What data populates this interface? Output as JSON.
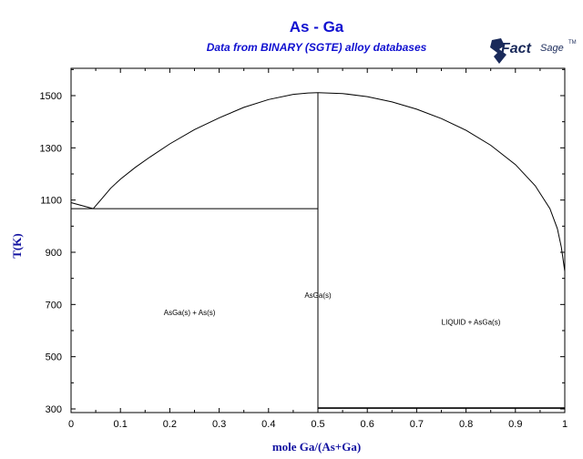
{
  "chart_data": {
    "type": "line",
    "title": "As - Ga",
    "subtitle": "Data from BINARY (SGTE) alloy databases",
    "xlabel": "mole Ga/(As+Ga)",
    "ylabel": "T(K)",
    "xlim": [
      0,
      1
    ],
    "ylim": [
      300,
      1600
    ],
    "grid": false,
    "x_ticks": [
      {
        "value": 0,
        "label": "0"
      },
      {
        "value": 0.1,
        "label": "0.1"
      },
      {
        "value": 0.2,
        "label": "0.2"
      },
      {
        "value": 0.3,
        "label": "0.3"
      },
      {
        "value": 0.4,
        "label": "0.4"
      },
      {
        "value": 0.5,
        "label": "0.5"
      },
      {
        "value": 0.6,
        "label": "0.6"
      },
      {
        "value": 0.7,
        "label": "0.7"
      },
      {
        "value": 0.8,
        "label": "0.8"
      },
      {
        "value": 0.9,
        "label": "0.9"
      },
      {
        "value": 1,
        "label": "1"
      }
    ],
    "y_ticks": [
      {
        "value": 300,
        "label": "300"
      },
      {
        "value": 500,
        "label": "500"
      },
      {
        "value": 700,
        "label": "700"
      },
      {
        "value": 900,
        "label": "900"
      },
      {
        "value": 1100,
        "label": "1100"
      },
      {
        "value": 1300,
        "label": "1300"
      },
      {
        "value": 1500,
        "label": "1500"
      }
    ],
    "series": [
      {
        "x": [
          0,
          0.045
        ],
        "y": [
          1090,
          1067
        ]
      },
      {
        "x": [
          0.045,
          0.06,
          0.08,
          0.1,
          0.13,
          0.16,
          0.2,
          0.25,
          0.3,
          0.35,
          0.4,
          0.45,
          0.48,
          0.5
        ],
        "y": [
          1067,
          1100,
          1145,
          1180,
          1225,
          1265,
          1315,
          1370,
          1415,
          1455,
          1485,
          1505,
          1510,
          1511
        ]
      },
      {
        "x": [
          0.5,
          0.55,
          0.6,
          0.65,
          0.7,
          0.75,
          0.8,
          0.85,
          0.9,
          0.94,
          0.97,
          0.985,
          0.993,
          1.0
        ],
        "y": [
          1511,
          1508,
          1496,
          1476,
          1448,
          1412,
          1367,
          1310,
          1236,
          1155,
          1067,
          990,
          920,
          827
        ]
      },
      {
        "x": [
          0,
          0.5
        ],
        "y": [
          1067,
          1067
        ]
      },
      {
        "x": [
          0.5,
          0.5
        ],
        "y": [
          300,
          1511
        ]
      },
      {
        "x": [
          0.5,
          1.0
        ],
        "y": [
          303,
          303
        ]
      }
    ],
    "annotations": [
      {
        "text": "AsGa(s) + As(s)",
        "x": 0.24,
        "y": 660
      },
      {
        "text": "AsGa(s)",
        "x": 0.5,
        "y": 725
      },
      {
        "text": "LIQUID + AsGa(s)",
        "x": 0.81,
        "y": 622
      }
    ]
  },
  "logo": {
    "icon": "factsage-logo-icon",
    "text_main": "Fact",
    "text_sub": "Sage",
    "trademark": "TM"
  }
}
